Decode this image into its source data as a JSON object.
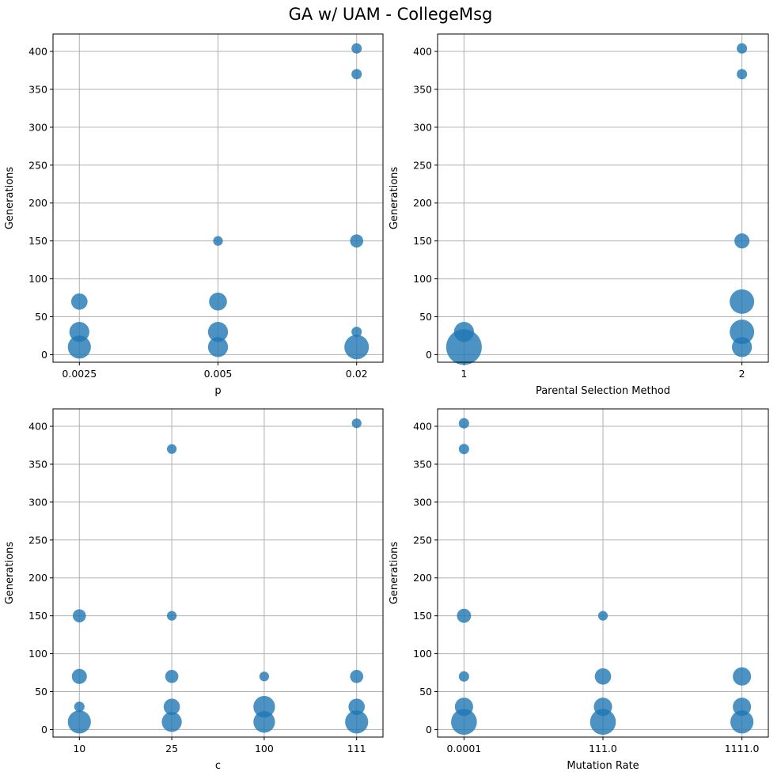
{
  "figure": {
    "title": "GA w/ UAM - CollegeMsg"
  },
  "style": {
    "marker_color": "#1f77b4",
    "marker_alpha": 0.8,
    "grid_color": "#b0b0b0"
  },
  "chart_data": [
    {
      "type": "scatter",
      "xlabel": "p",
      "ylabel": "Generations",
      "categories": [
        "0.0025",
        "0.005",
        "0.02"
      ],
      "ylim": [
        -10,
        423
      ],
      "yticks": [
        0,
        50,
        100,
        150,
        200,
        250,
        300,
        350,
        400
      ],
      "grid": true,
      "points": [
        {
          "x": "0.0025",
          "y": 10,
          "size": 4
        },
        {
          "x": "0.0025",
          "y": 30,
          "size": 3
        },
        {
          "x": "0.0025",
          "y": 70,
          "size": 2
        },
        {
          "x": "0.005",
          "y": 10,
          "size": 3
        },
        {
          "x": "0.005",
          "y": 30,
          "size": 3
        },
        {
          "x": "0.005",
          "y": 70,
          "size": 2.4
        },
        {
          "x": "0.005",
          "y": 150,
          "size": 0.7
        },
        {
          "x": "0.02",
          "y": 10,
          "size": 4.5
        },
        {
          "x": "0.02",
          "y": 30,
          "size": 0.8
        },
        {
          "x": "0.02",
          "y": 150,
          "size": 1.3
        },
        {
          "x": "0.02",
          "y": 370,
          "size": 0.8
        },
        {
          "x": "0.02",
          "y": 404,
          "size": 0.8
        }
      ]
    },
    {
      "type": "scatter",
      "xlabel": "Parental Selection Method",
      "ylabel": "Generations",
      "categories": [
        "1",
        "2"
      ],
      "ylim": [
        -10,
        423
      ],
      "yticks": [
        0,
        50,
        100,
        150,
        200,
        250,
        300,
        350,
        400
      ],
      "grid": true,
      "points": [
        {
          "x": "1",
          "y": 10,
          "size": 9.5
        },
        {
          "x": "1",
          "y": 30,
          "size": 3
        },
        {
          "x": "2",
          "y": 10,
          "size": 3
        },
        {
          "x": "2",
          "y": 30,
          "size": 4.5
        },
        {
          "x": "2",
          "y": 70,
          "size": 4.5
        },
        {
          "x": "2",
          "y": 150,
          "size": 1.7
        },
        {
          "x": "2",
          "y": 370,
          "size": 0.8
        },
        {
          "x": "2",
          "y": 404,
          "size": 0.8
        }
      ]
    },
    {
      "type": "scatter",
      "xlabel": "c",
      "ylabel": "Generations",
      "categories": [
        "10",
        "25",
        "100",
        "111"
      ],
      "ylim": [
        -10,
        423
      ],
      "yticks": [
        0,
        50,
        100,
        150,
        200,
        250,
        300,
        350,
        400
      ],
      "grid": true,
      "points": [
        {
          "x": "10",
          "y": 10,
          "size": 4
        },
        {
          "x": "10",
          "y": 30,
          "size": 0.8
        },
        {
          "x": "10",
          "y": 70,
          "size": 1.7
        },
        {
          "x": "10",
          "y": 150,
          "size": 1.3
        },
        {
          "x": "25",
          "y": 10,
          "size": 3
        },
        {
          "x": "25",
          "y": 30,
          "size": 2
        },
        {
          "x": "25",
          "y": 70,
          "size": 1.3
        },
        {
          "x": "25",
          "y": 150,
          "size": 0.7
        },
        {
          "x": "25",
          "y": 370,
          "size": 0.7
        },
        {
          "x": "100",
          "y": 10,
          "size": 3.5
        },
        {
          "x": "100",
          "y": 30,
          "size": 3.5
        },
        {
          "x": "100",
          "y": 70,
          "size": 0.7
        },
        {
          "x": "111",
          "y": 10,
          "size": 4
        },
        {
          "x": "111",
          "y": 30,
          "size": 2
        },
        {
          "x": "111",
          "y": 70,
          "size": 1.3
        },
        {
          "x": "111",
          "y": 404,
          "size": 0.7
        }
      ]
    },
    {
      "type": "scatter",
      "xlabel": "Mutation Rate",
      "ylabel": "Generations",
      "categories": [
        "0.0001",
        "111.0",
        "1111.0"
      ],
      "ylim": [
        -10,
        423
      ],
      "yticks": [
        0,
        50,
        100,
        150,
        200,
        250,
        300,
        350,
        400
      ],
      "grid": true,
      "points": [
        {
          "x": "0.0001",
          "y": 10,
          "size": 5
        },
        {
          "x": "0.0001",
          "y": 30,
          "size": 2.5
        },
        {
          "x": "0.0001",
          "y": 70,
          "size": 0.8
        },
        {
          "x": "0.0001",
          "y": 150,
          "size": 1.5
        },
        {
          "x": "0.0001",
          "y": 370,
          "size": 0.8
        },
        {
          "x": "0.0001",
          "y": 404,
          "size": 0.8
        },
        {
          "x": "111.0",
          "y": 10,
          "size": 5
        },
        {
          "x": "111.0",
          "y": 30,
          "size": 2.5
        },
        {
          "x": "111.0",
          "y": 70,
          "size": 2
        },
        {
          "x": "111.0",
          "y": 150,
          "size": 0.7
        },
        {
          "x": "1111.0",
          "y": 10,
          "size": 4
        },
        {
          "x": "1111.0",
          "y": 30,
          "size": 2.5
        },
        {
          "x": "1111.0",
          "y": 70,
          "size": 2.5
        }
      ]
    }
  ]
}
